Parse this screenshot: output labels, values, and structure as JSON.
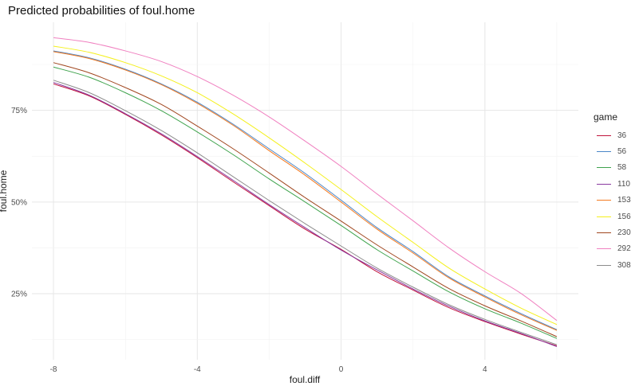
{
  "chart_data": {
    "type": "line",
    "title": "Predicted probabilities of foul.home",
    "xlabel": "foul.diff",
    "ylabel": "foul.home",
    "xlim": [
      -8.6,
      6.6
    ],
    "ylim": [
      0.07,
      0.99
    ],
    "xticks": [
      -8,
      -4,
      0,
      4
    ],
    "xtick_labels": [
      "-8",
      "-4",
      "0",
      "4"
    ],
    "yticks": [
      0.25,
      0.5,
      0.75
    ],
    "ytick_labels": [
      "25%",
      "50%",
      "75%"
    ],
    "grid": true,
    "legend_title": "game",
    "legend_position": "right",
    "x": [
      -8,
      -7,
      -6,
      -5,
      -4,
      -3,
      -2,
      -1,
      0,
      1,
      2,
      3,
      4,
      5,
      6
    ],
    "series": [
      {
        "name": "36",
        "color": "#c0143c",
        "values": [
          0.822,
          0.789,
          0.739,
          0.683,
          0.621,
          0.555,
          0.49,
          0.426,
          0.371,
          0.31,
          0.26,
          0.212,
          0.174,
          0.14,
          0.108
        ]
      },
      {
        "name": "56",
        "color": "#4a86c8",
        "values": [
          0.912,
          0.893,
          0.862,
          0.822,
          0.772,
          0.712,
          0.645,
          0.578,
          0.505,
          0.43,
          0.365,
          0.296,
          0.244,
          0.196,
          0.152
        ]
      },
      {
        "name": "58",
        "color": "#3fa34d",
        "values": [
          0.868,
          0.84,
          0.798,
          0.749,
          0.691,
          0.629,
          0.563,
          0.5,
          0.436,
          0.37,
          0.312,
          0.255,
          0.209,
          0.17,
          0.128
        ]
      },
      {
        "name": "110",
        "color": "#8a3aa0",
        "values": [
          0.826,
          0.791,
          0.741,
          0.686,
          0.624,
          0.559,
          0.493,
          0.43,
          0.369,
          0.315,
          0.263,
          0.216,
          0.176,
          0.142,
          0.106
        ]
      },
      {
        "name": "153",
        "color": "#f47a20",
        "values": [
          0.91,
          0.891,
          0.86,
          0.82,
          0.769,
          0.709,
          0.64,
          0.573,
          0.5,
          0.426,
          0.361,
          0.293,
          0.241,
          0.193,
          0.15
        ]
      },
      {
        "name": "156",
        "color": "#f4f01c",
        "values": [
          0.925,
          0.908,
          0.88,
          0.844,
          0.798,
          0.74,
          0.675,
          0.606,
          0.534,
          0.46,
          0.39,
          0.32,
          0.263,
          0.211,
          0.166
        ]
      },
      {
        "name": "230",
        "color": "#a0461e",
        "values": [
          0.88,
          0.852,
          0.812,
          0.766,
          0.707,
          0.645,
          0.579,
          0.512,
          0.448,
          0.383,
          0.323,
          0.264,
          0.217,
          0.176,
          0.133
        ]
      },
      {
        "name": "292",
        "color": "#f080c0",
        "values": [
          0.948,
          0.935,
          0.912,
          0.883,
          0.842,
          0.791,
          0.732,
          0.666,
          0.597,
          0.522,
          0.449,
          0.375,
          0.31,
          0.251,
          0.177
        ]
      },
      {
        "name": "308",
        "color": "#8c8c8c",
        "values": [
          0.832,
          0.798,
          0.749,
          0.695,
          0.634,
          0.569,
          0.504,
          0.441,
          0.38,
          0.32,
          0.268,
          0.22,
          0.18,
          0.145,
          0.111
        ]
      }
    ]
  }
}
